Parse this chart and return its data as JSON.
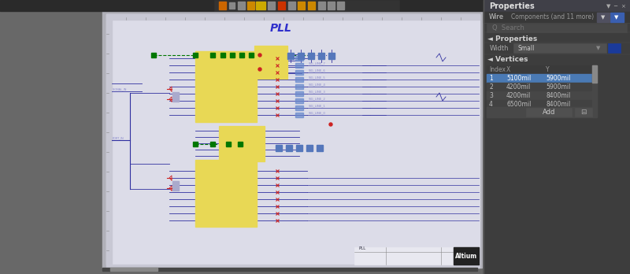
{
  "fig_width": 8.0,
  "fig_height": 3.48,
  "dpi": 100,
  "bg_color": "#686868",
  "toolbar_bg": "#2b2b2b",
  "schematic_bg": "#dcdce8",
  "schematic_border": "#aaaaaa",
  "ruler_bg": "#c8c8d4",
  "panel_bg": "#3d3d3d",
  "panel_header_bg": "#4a4a52",
  "panel_title": "Properties",
  "panel_title_color": "#e8e8e8",
  "wire_tab": "Wire",
  "components_tab": "Components (and 11 more)",
  "search_placeholder": "Search",
  "properties_label": "Properties",
  "width_label": "Width",
  "width_value": "Small",
  "vertices_label": "Vertices",
  "vertices_headers": [
    "Index",
    "X",
    "Y"
  ],
  "vertices_data": [
    [
      "1",
      "5100mil",
      "5900mil"
    ],
    [
      "2",
      "4200mil",
      "5900mil"
    ],
    [
      "3",
      "4200mil",
      "8400mil"
    ],
    [
      "4",
      "6500mil",
      "8400mil"
    ]
  ],
  "add_button": "Add",
  "pll_title": "PLL",
  "altium_logo": "Altium",
  "table_row1_bg": "#4a7ab5",
  "table_row_alt": "#474747",
  "table_row_normal": "#424242",
  "table_header_bg": "#3a3a3a",
  "table_text": "#c0c0c0",
  "table_sel_text": "#ffffff",
  "filter_btn_bg": "#3a5fb0",
  "filter_arrow_bg": "#555577",
  "lc": "#3030a0",
  "rc": "#cc2222",
  "gc": "#007700",
  "yc": "#ccaa20",
  "ic_fill": "#e8d855",
  "ic_border": "#cc4400",
  "scrollbar_bg": "#505050",
  "scrollbar_thumb": "#888888"
}
